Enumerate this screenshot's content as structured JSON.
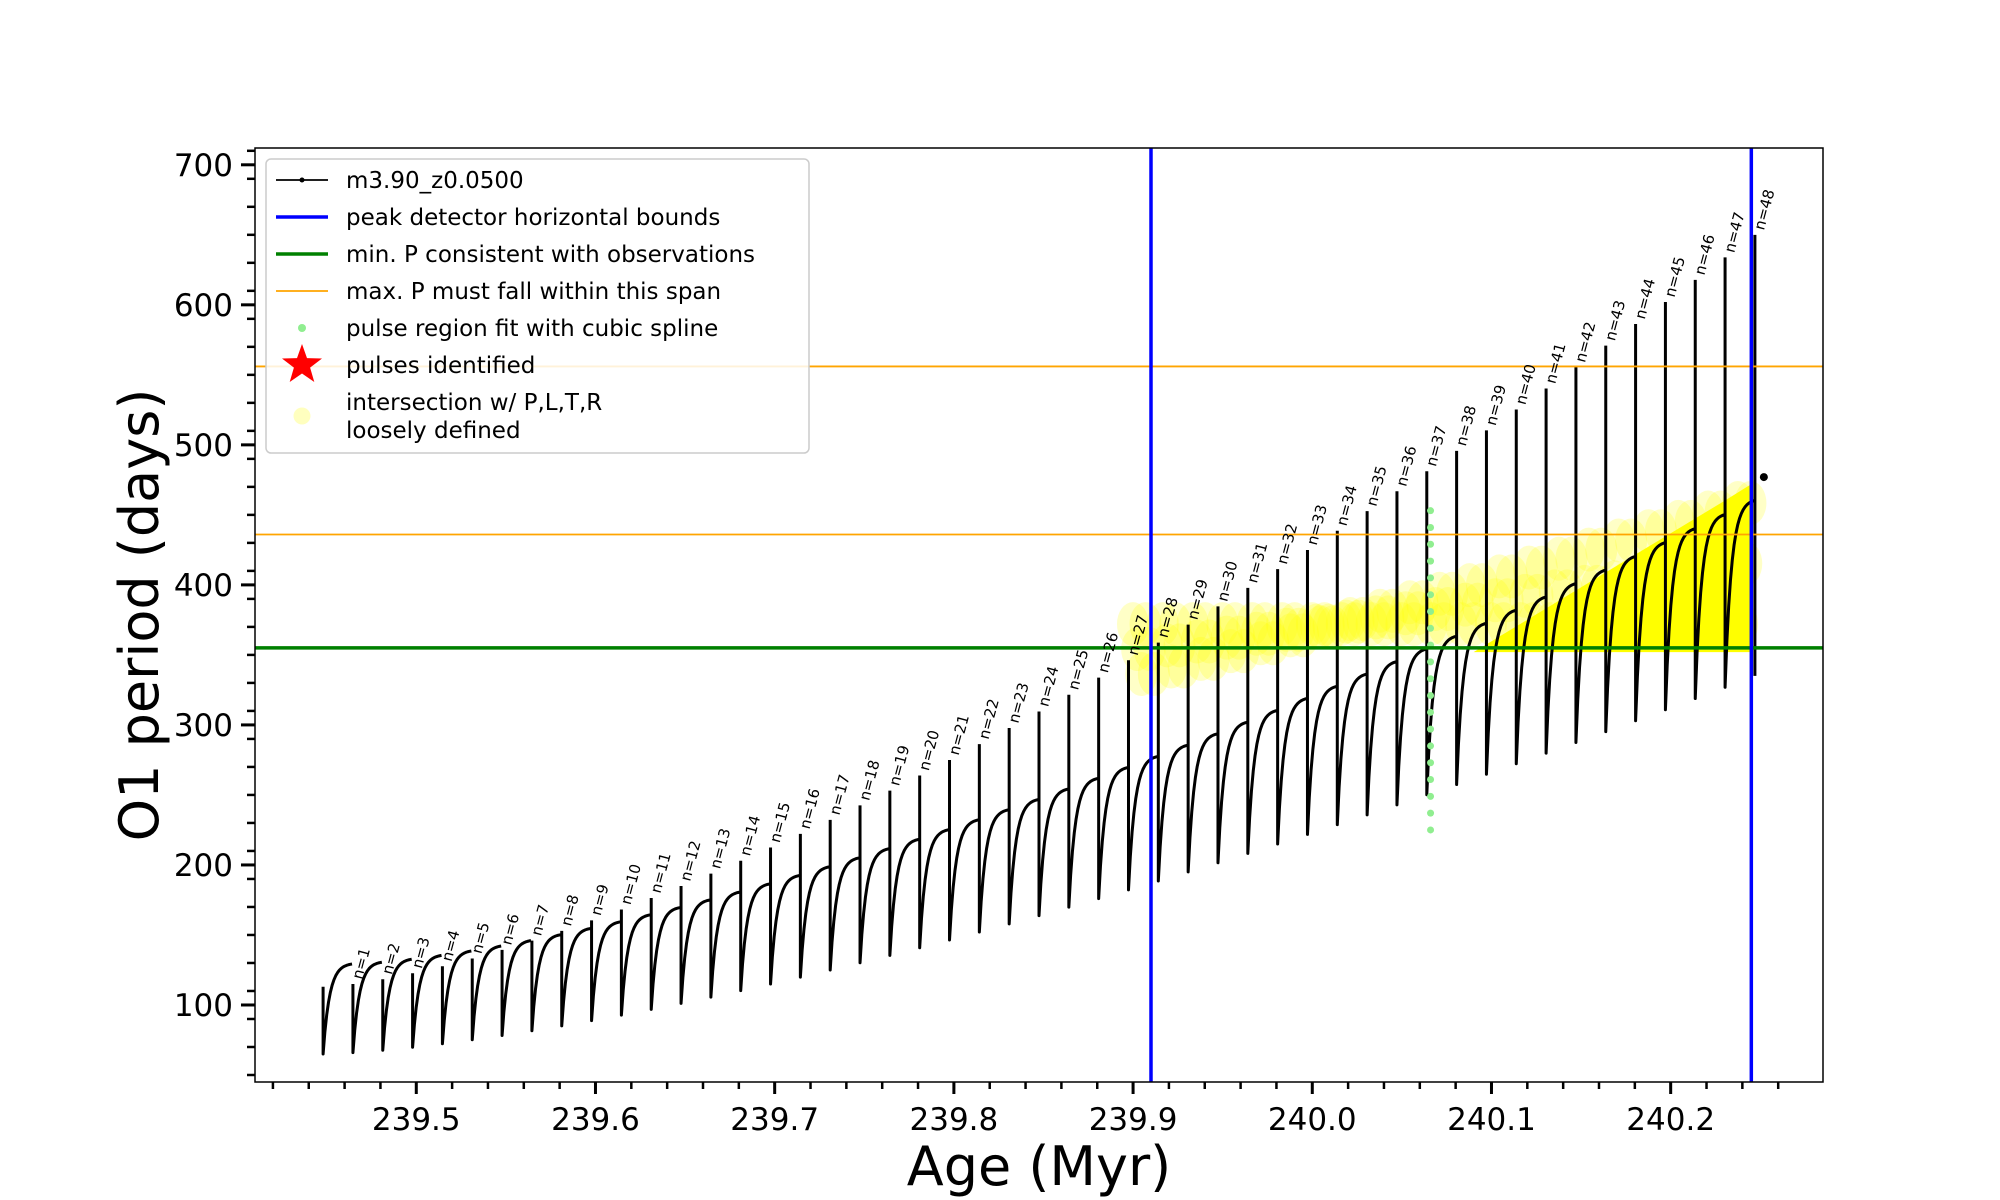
{
  "chart_data": {
    "type": "line",
    "title": "",
    "xlabel": "Age (Myr)",
    "ylabel": "O1 period (days)",
    "xlim": [
      239.41,
      240.285
    ],
    "ylim": [
      45,
      712
    ],
    "x_ticks": [
      239.5,
      239.6,
      239.7,
      239.8,
      239.9,
      240.0,
      240.1,
      240.2
    ],
    "x_tick_labels": [
      "239.5",
      "239.6",
      "239.7",
      "239.8",
      "239.9",
      "240.0",
      "240.1",
      "240.2"
    ],
    "y_ticks": [
      100,
      200,
      300,
      400,
      500,
      600,
      700
    ],
    "y_tick_labels": [
      "100",
      "200",
      "300",
      "400",
      "500",
      "600",
      "700"
    ],
    "grid": false,
    "legend_position": "top-left",
    "colors": {
      "model": "#000000",
      "bounds": "#0000ff",
      "min_p": "#008000",
      "max_p": "#ffa500",
      "spline": "#90ee90",
      "pulses": "#ff0000",
      "intersection": "#ffff00"
    },
    "legend": [
      {
        "key": "model",
        "label": "m3.90_z0.0500"
      },
      {
        "key": "bounds",
        "label": "peak detector horizontal bounds"
      },
      {
        "key": "min_p",
        "label": "min. P consistent with observations"
      },
      {
        "key": "max_p",
        "label": "max. P must fall within this span"
      },
      {
        "key": "spline",
        "label": "pulse region fit with cubic spline"
      },
      {
        "key": "pulses",
        "label": "pulses identified"
      },
      {
        "key": "intersection",
        "label": "intersection w/ P,L,T,R",
        "label2": "loosely defined"
      }
    ],
    "vertical_lines": [
      {
        "name": "peak detector horizontal bounds",
        "x": 239.91
      },
      {
        "name": "peak detector horizontal bounds",
        "x": 240.245
      }
    ],
    "horizontal_lines": [
      {
        "name": "min. P consistent with observations",
        "y": 355
      },
      {
        "name": "max. P must fall within this span",
        "y": 436
      },
      {
        "name": "max. P must fall within this span",
        "y": 556
      }
    ],
    "pulse_cycles": {
      "x_start": 239.448,
      "x_end": 240.247,
      "count": 49,
      "first_pulse_index": 1,
      "start_trough": 65,
      "end_trough": 335,
      "start_peak": 130,
      "end_peak": 472,
      "start_spike": 113,
      "end_spike": 650
    },
    "pulse_labels": [
      "n=1",
      "n=2",
      "n=3",
      "n=4",
      "n=5",
      "n=6",
      "n=7",
      "n=8",
      "n=9",
      "n=10",
      "n=11",
      "n=12",
      "n=13",
      "n=14",
      "n=15",
      "n=16",
      "n=17",
      "n=18",
      "n=19",
      "n=20",
      "n=21",
      "n=22",
      "n=23",
      "n=24",
      "n=25",
      "n=26",
      "n=27",
      "n=28",
      "n=29",
      "n=30",
      "n=31",
      "n=32",
      "n=33",
      "n=34",
      "n=35",
      "n=36",
      "n=37",
      "n=38",
      "n=39",
      "n=40",
      "n=41",
      "n=42",
      "n=43",
      "n=44",
      "n=45",
      "n=46",
      "n=47",
      "n=48"
    ],
    "spline_region": {
      "x": 240.066,
      "y_min": 225,
      "y_max": 460
    },
    "intersection_region": {
      "x_start": 239.91,
      "x_end": 240.245,
      "y_min": 352,
      "y_max": 472
    }
  }
}
